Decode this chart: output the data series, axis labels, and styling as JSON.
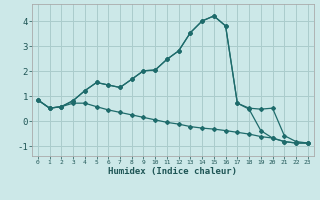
{
  "title": "",
  "xlabel": "Humidex (Indice chaleur)",
  "ylabel": "",
  "bg_color": "#cce8e8",
  "line_color": "#1e6b6b",
  "grid_color": "#aacccc",
  "xlim": [
    -0.5,
    23.5
  ],
  "ylim": [
    -1.4,
    4.7
  ],
  "xticks": [
    0,
    1,
    2,
    3,
    4,
    5,
    6,
    7,
    8,
    9,
    10,
    11,
    12,
    13,
    14,
    15,
    16,
    17,
    18,
    19,
    20,
    21,
    22,
    23
  ],
  "yticks": [
    -1,
    0,
    1,
    2,
    3,
    4
  ],
  "curve1_x": [
    0,
    1,
    2,
    3,
    4,
    5,
    6,
    7,
    8,
    9,
    10,
    11,
    12,
    13,
    14,
    15,
    16,
    17,
    18,
    19,
    20,
    21,
    22,
    23
  ],
  "curve1_y": [
    0.85,
    0.52,
    0.58,
    0.82,
    1.22,
    1.55,
    1.45,
    1.35,
    1.68,
    2.02,
    2.05,
    2.48,
    2.82,
    3.55,
    4.02,
    4.22,
    3.82,
    0.72,
    0.52,
    0.48,
    0.52,
    -0.58,
    -0.82,
    -0.88
  ],
  "curve2_x": [
    0,
    1,
    2,
    3,
    4,
    5,
    6,
    7,
    8,
    9,
    10,
    11,
    12,
    13,
    14,
    15,
    16,
    17,
    18,
    19,
    20,
    21,
    22,
    23
  ],
  "curve2_y": [
    0.85,
    0.52,
    0.58,
    0.72,
    0.72,
    0.58,
    0.45,
    0.35,
    0.25,
    0.15,
    0.05,
    -0.05,
    -0.12,
    -0.22,
    -0.28,
    -0.32,
    -0.38,
    -0.45,
    -0.52,
    -0.62,
    -0.68,
    -0.82,
    -0.88,
    -0.88
  ],
  "curve3_x": [
    0,
    1,
    2,
    3,
    4,
    5,
    6,
    7,
    8,
    9,
    10,
    11,
    12,
    13,
    14,
    15,
    16,
    17,
    18,
    19,
    20,
    21,
    22,
    23
  ],
  "curve3_y": [
    0.85,
    0.52,
    0.58,
    0.82,
    1.22,
    1.55,
    1.45,
    1.35,
    1.68,
    2.02,
    2.05,
    2.48,
    2.82,
    3.55,
    4.02,
    4.22,
    3.82,
    0.72,
    0.48,
    -0.38,
    -0.68,
    -0.82,
    -0.88,
    -0.88
  ]
}
